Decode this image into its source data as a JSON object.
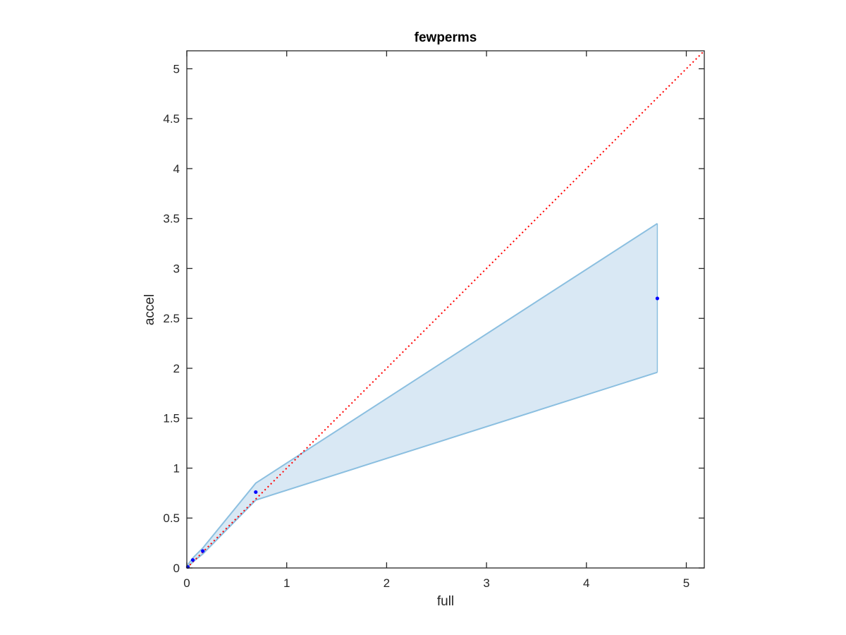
{
  "chart_data": {
    "type": "scatter",
    "title": "fewperms",
    "xlabel": "full",
    "ylabel": "accel",
    "xlim": [
      0,
      5.18
    ],
    "ylim": [
      0,
      5.18
    ],
    "xticks": [
      0,
      1,
      2,
      3,
      4,
      5
    ],
    "yticks": [
      0,
      0.5,
      1,
      1.5,
      2,
      2.5,
      3,
      3.5,
      4,
      4.5,
      5
    ],
    "xtick_labels": [
      "0",
      "1",
      "2",
      "3",
      "4",
      "5"
    ],
    "ytick_labels": [
      "0",
      "0.5",
      "1",
      "1.5",
      "2",
      "2.5",
      "3",
      "3.5",
      "4",
      "4.5",
      "5"
    ],
    "grid": false,
    "points": {
      "x": [
        0.01,
        0.06,
        0.16,
        0.69,
        4.71
      ],
      "y": [
        0.01,
        0.08,
        0.17,
        0.76,
        2.7
      ]
    },
    "band": {
      "x": [
        0.0,
        0.06,
        0.16,
        0.69,
        4.71
      ],
      "upper": [
        0.02,
        0.1,
        0.2,
        0.85,
        3.45
      ],
      "lower": [
        0.0,
        0.06,
        0.14,
        0.68,
        1.96
      ]
    },
    "reference_line": {
      "x": [
        0,
        5.18
      ],
      "y": [
        0,
        5.18
      ],
      "style": "dotted"
    },
    "colors": {
      "points": "#0000ff",
      "band_fill": "#d9e8f4",
      "band_edge": "#8bbfe0",
      "reference_line": "#ff0000",
      "axes": "#262626"
    }
  }
}
